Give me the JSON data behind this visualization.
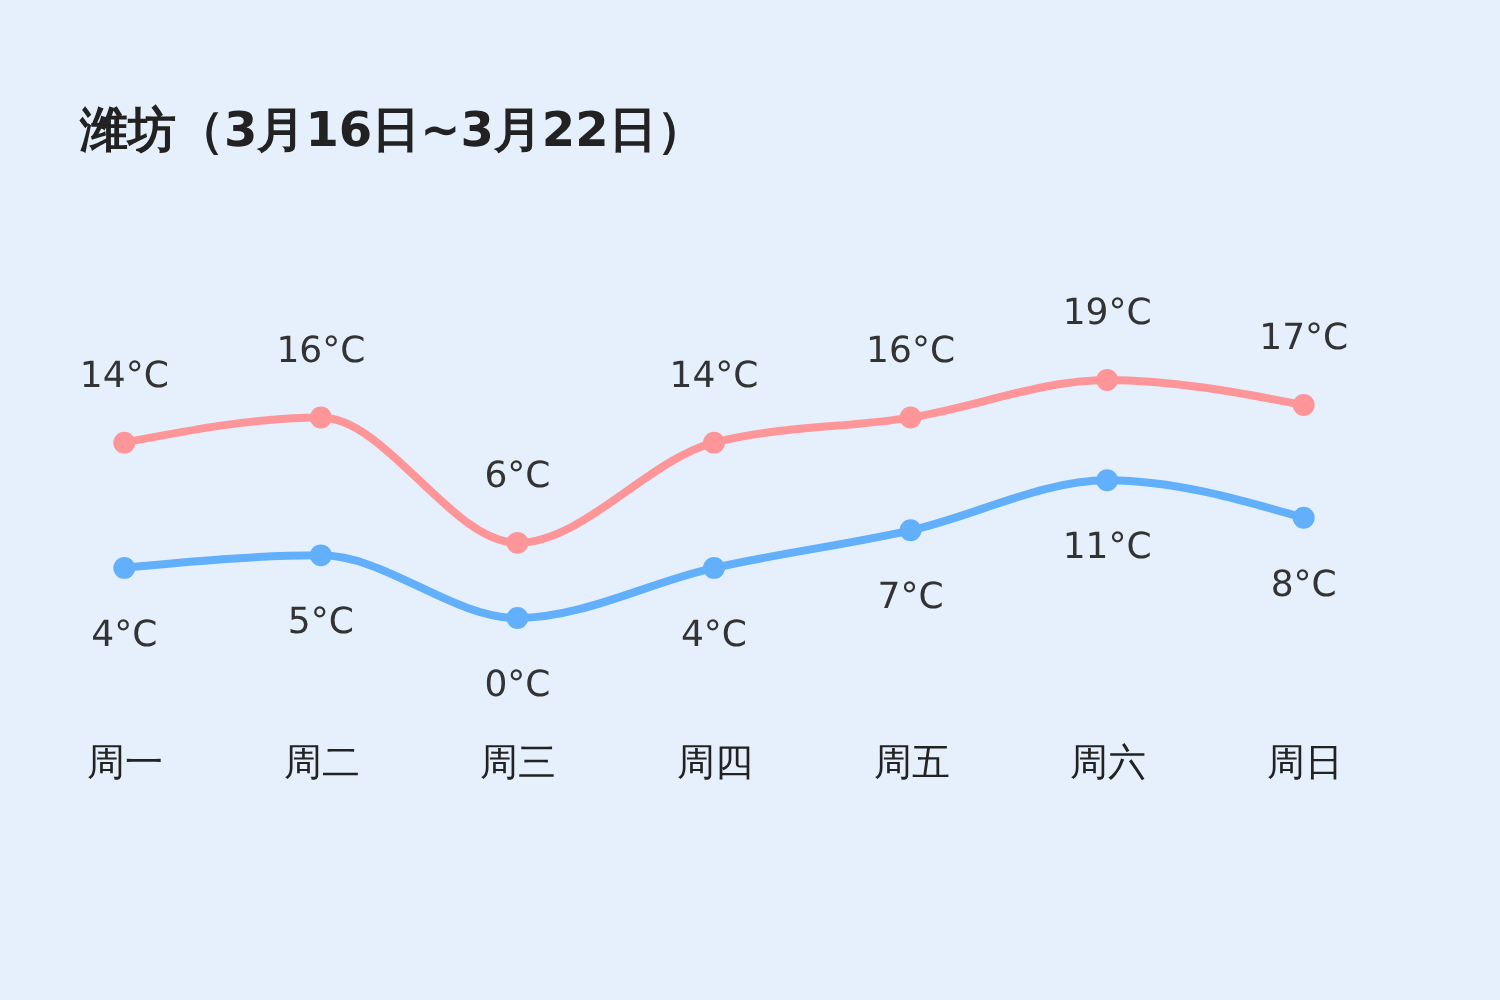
{
  "chart_data": {
    "type": "line",
    "title": "潍坊（3月16日~3月22日）",
    "categories": [
      "周一",
      "周二",
      "周三",
      "周四",
      "周五",
      "周六",
      "周日"
    ],
    "series": [
      {
        "color": "#fe9598",
        "values": [
          14,
          16,
          6,
          14,
          16,
          19,
          17
        ],
        "value_labels": [
          "14°C",
          "16°C",
          "6°C",
          "14°C",
          "16°C",
          "19°C",
          "17°C"
        ]
      },
      {
        "color": "#62affb",
        "values": [
          4,
          5,
          0,
          4,
          7,
          11,
          8
        ],
        "value_labels": [
          "4°C",
          "5°C",
          "0°C",
          "4°C",
          "7°C",
          "11°C",
          "8°C"
        ]
      }
    ],
    "tick_labels": "x",
    "marker": "circle",
    "line_style": "solid"
  }
}
